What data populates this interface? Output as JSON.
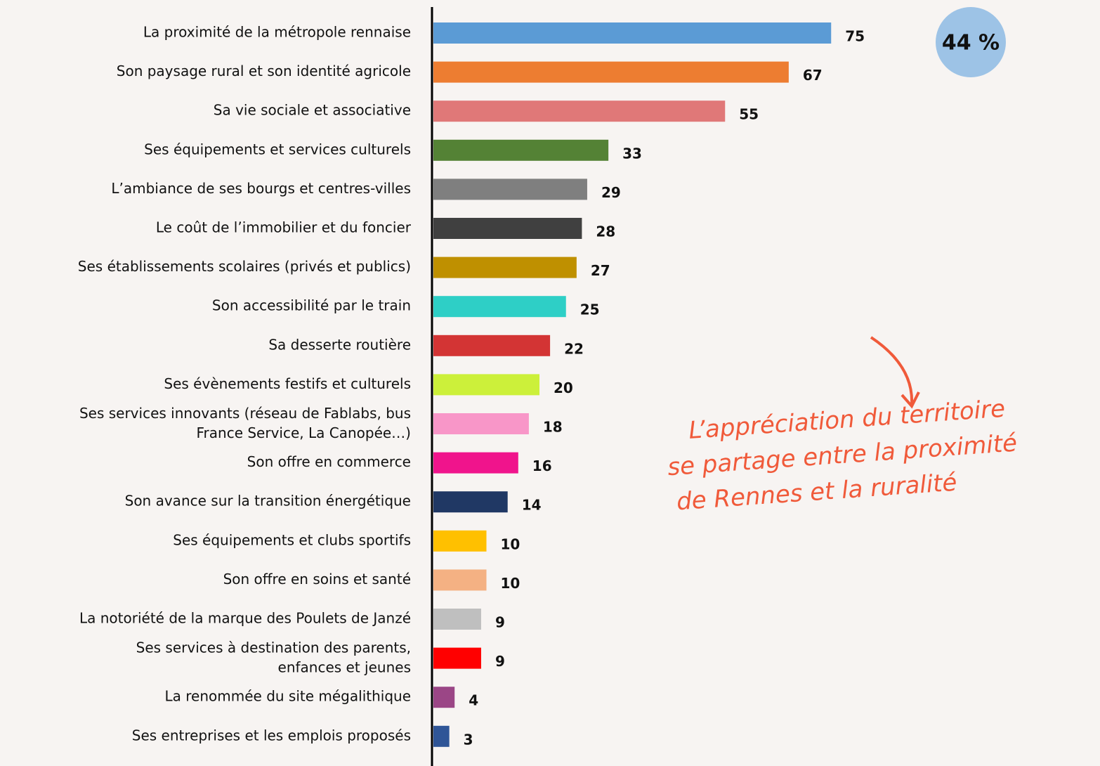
{
  "chart_data": {
    "type": "barh",
    "categories": [
      "La proximité de la métropole rennaise",
      "Son paysage rural et son identité agricole",
      "Sa vie sociale et associative",
      "Ses équipements et services culturels",
      "L’ambiance de ses bourgs et centres-villes",
      "Le coût de l’immobilier et du foncier",
      "Ses établissements scolaires (privés et publics)",
      "Son accessibilité par le train",
      "Sa desserte routière",
      "Ses évènements festifs et culturels",
      "Ses services innovants (réseau de Fablabs, bus\nFrance Service, La Canopée…)",
      "Son offre en commerce",
      "Son avance sur la transition énergétique",
      "Ses équipements et clubs sportifs",
      "Son offre en soins et santé",
      "La notoriété de la marque des Poulets de Janzé",
      "Ses services à destination des parents,\nenfances et jeunes",
      "La renommée du site mégalithique",
      "Ses entreprises et les emplois proposés"
    ],
    "values": [
      75,
      67,
      55,
      33,
      29,
      28,
      27,
      25,
      22,
      20,
      18,
      16,
      14,
      10,
      10,
      9,
      9,
      4,
      3
    ],
    "colors": [
      "#5b9bd5",
      "#ed7d31",
      "#e07878",
      "#548235",
      "#7f7f7f",
      "#404040",
      "#bf9000",
      "#2ecfc6",
      "#d33434",
      "#ccf03a",
      "#f896c8",
      "#f0148c",
      "#203864",
      "#ffc000",
      "#f4b183",
      "#bfbfbf",
      "#ff0000",
      "#9b4686",
      "#2f5597"
    ],
    "badge": "44 %",
    "annotation": [
      "L’appréciation du territoire",
      "se partage entre la proximité",
      "de Rennes et la ruralité"
    ]
  }
}
